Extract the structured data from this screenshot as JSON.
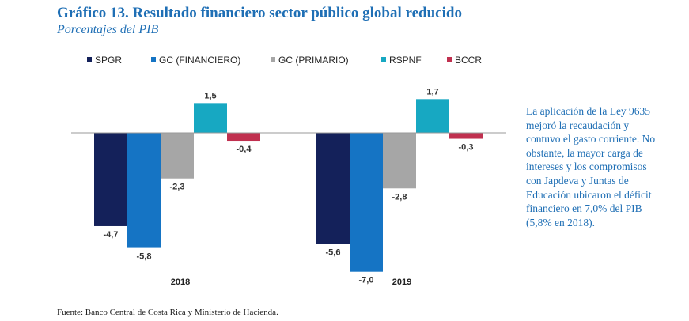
{
  "title_prefix": "Gráfico 13.",
  "title_text": "Resultado financiero sector público global reducido",
  "subtitle": "Porcentajes del PIB",
  "chart_data": {
    "type": "bar",
    "title": "Gráfico 13. Resultado financiero sector público global reducido",
    "subtitle": "Porcentajes del PIB",
    "categories": [
      "2018",
      "2019"
    ],
    "series": [
      {
        "name": "SPGR",
        "color": "#14215a",
        "values": [
          -4.7,
          -5.6
        ],
        "labels": [
          "-4,7",
          "-5,6"
        ]
      },
      {
        "name": "GC (FINANCIERO)",
        "color": "#1574c4",
        "values": [
          -5.8,
          -7.0
        ],
        "labels": [
          "-5,8",
          "-7,0"
        ]
      },
      {
        "name": "GC (PRIMARIO)",
        "color": "#a6a6a6",
        "values": [
          -2.3,
          -2.8
        ],
        "labels": [
          "-2,3",
          "-2,8"
        ]
      },
      {
        "name": "RSPNF",
        "color": "#17a8c2",
        "values": [
          1.5,
          1.7
        ],
        "labels": [
          "1,5",
          "1,7"
        ]
      },
      {
        "name": "BCCR",
        "color": "#c0304f",
        "values": [
          -0.4,
          -0.3
        ],
        "labels": [
          "-0,4",
          "-0,3"
        ]
      }
    ],
    "legend_position": "top",
    "ylim": [
      -7.0,
      1.7
    ],
    "grid": false,
    "xlabel": "",
    "ylabel": ""
  },
  "note": "La aplicación de la Ley 9635 mejoró la recaudación y contuvo el gasto corriente. No obstante, la mayor carga de intereses y los compromisos con Japdeva y Juntas de Educación ubicaron el déficit financiero en 7,0% del PIB (5,8% en 2018).",
  "source": "Fuente: Banco Central de Costa Rica y Ministerio de Hacienda."
}
